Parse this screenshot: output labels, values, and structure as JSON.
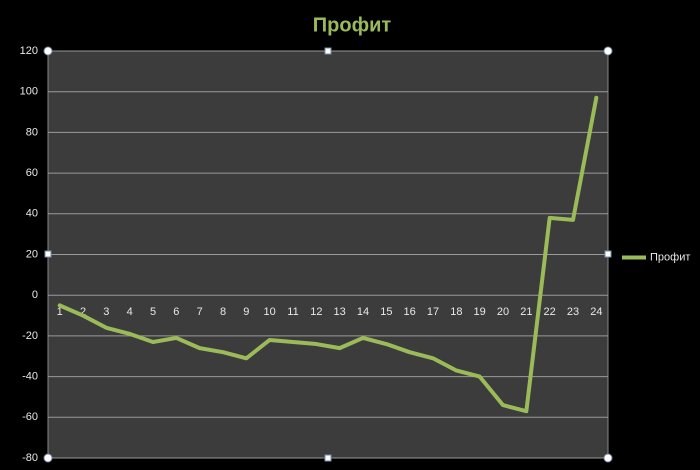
{
  "chart_data": {
    "type": "line",
    "title": "Профит",
    "categories": [
      "1",
      "2",
      "3",
      "4",
      "5",
      "6",
      "7",
      "8",
      "9",
      "10",
      "11",
      "12",
      "13",
      "14",
      "15",
      "16",
      "17",
      "18",
      "19",
      "20",
      "21",
      "22",
      "23",
      "24"
    ],
    "series": [
      {
        "name": "Профит",
        "color": "#9bbb59",
        "values": [
          -5,
          -10,
          -16,
          -19,
          -23,
          -21,
          -26,
          -28,
          -31,
          -22,
          -23,
          -24,
          -26,
          -21,
          -24,
          -28,
          -31,
          -37,
          -40,
          -54,
          -57,
          38,
          37,
          97
        ]
      }
    ],
    "ylim": [
      -80,
      120
    ],
    "yticks": [
      -80,
      -60,
      -40,
      -20,
      0,
      20,
      40,
      60,
      80,
      100,
      120
    ],
    "grid": true,
    "legend": "right"
  }
}
